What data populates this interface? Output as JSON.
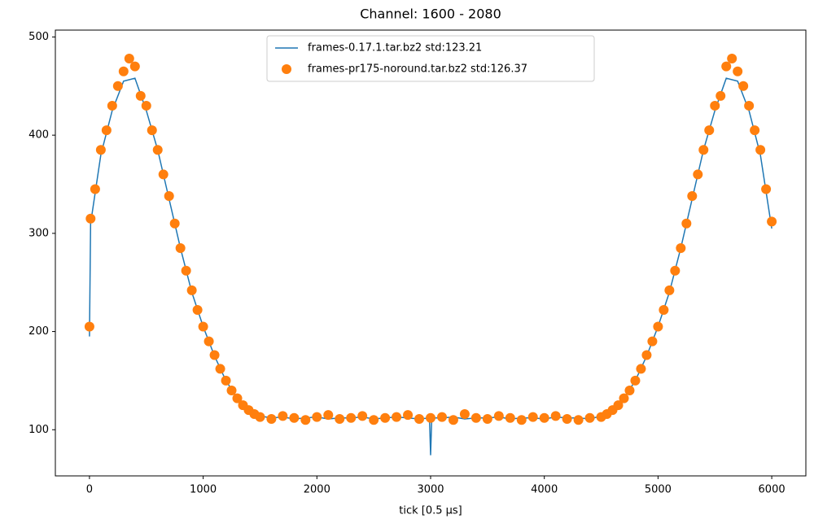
{
  "chart_data": {
    "type": "line",
    "title": "Channel: 1600 - 2080",
    "xlabel": "tick [0.5 μs]",
    "xlim": [
      -300,
      6300
    ],
    "xticks": [
      0,
      1000,
      2000,
      3000,
      4000,
      5000,
      6000
    ],
    "ylim": [
      53,
      507
    ],
    "yticks": [
      100,
      200,
      300,
      400,
      500
    ],
    "legend": "upper center",
    "series": [
      {
        "name": "frames-0.17.1.tar.bz2 std:123.21",
        "color": "#1f77b4",
        "style": "line",
        "x": [
          0,
          10,
          100,
          200,
          300,
          400,
          500,
          600,
          700,
          800,
          900,
          1000,
          1100,
          1200,
          1300,
          1400,
          1500,
          1600,
          1700,
          1800,
          1900,
          2000,
          2100,
          2200,
          2300,
          2400,
          2500,
          2600,
          2700,
          2800,
          2900,
          2990,
          3000,
          3010,
          3100,
          3200,
          3300,
          3400,
          3500,
          3600,
          3700,
          3800,
          3900,
          4000,
          4100,
          4200,
          4300,
          4400,
          4500,
          4600,
          4700,
          4800,
          4900,
          5000,
          5100,
          5200,
          5300,
          5400,
          5500,
          5600,
          5700,
          5800,
          5900,
          6000
        ],
        "values": [
          195,
          310,
          380,
          425,
          455,
          458,
          425,
          385,
          335,
          285,
          240,
          205,
          175,
          150,
          132,
          120,
          114,
          112,
          113,
          111,
          112,
          113,
          111,
          112,
          112,
          113,
          111,
          112,
          113,
          112,
          111,
          112,
          74,
          112,
          112,
          113,
          111,
          112,
          112,
          113,
          111,
          112,
          112,
          111,
          113,
          112,
          112,
          111,
          114,
          120,
          132,
          150,
          175,
          205,
          240,
          285,
          335,
          385,
          425,
          458,
          455,
          425,
          380,
          305
        ]
      },
      {
        "name": "frames-pr175-noround.tar.bz2 std:126.37",
        "color": "#ff7f0e",
        "style": "scatter",
        "x": [
          0,
          10,
          50,
          100,
          150,
          200,
          250,
          300,
          350,
          400,
          450,
          500,
          550,
          600,
          650,
          700,
          750,
          800,
          850,
          900,
          950,
          1000,
          1050,
          1100,
          1150,
          1200,
          1250,
          1300,
          1350,
          1400,
          1450,
          1500,
          1600,
          1700,
          1800,
          1900,
          2000,
          2100,
          2200,
          2300,
          2400,
          2500,
          2600,
          2700,
          2800,
          2900,
          3000,
          3100,
          3200,
          3300,
          3400,
          3500,
          3600,
          3700,
          3800,
          3900,
          4000,
          4100,
          4200,
          4300,
          4400,
          4500,
          4550,
          4600,
          4650,
          4700,
          4750,
          4800,
          4850,
          4900,
          4950,
          5000,
          5050,
          5100,
          5150,
          5200,
          5250,
          5300,
          5350,
          5400,
          5450,
          5500,
          5550,
          5600,
          5650,
          5700,
          5750,
          5800,
          5850,
          5900,
          5950,
          6000
        ],
        "values": [
          205,
          315,
          345,
          385,
          405,
          430,
          450,
          465,
          478,
          470,
          440,
          430,
          405,
          385,
          360,
          338,
          310,
          285,
          262,
          242,
          222,
          205,
          190,
          176,
          162,
          150,
          140,
          132,
          125,
          120,
          116,
          113,
          111,
          114,
          112,
          110,
          113,
          115,
          111,
          112,
          114,
          110,
          112,
          113,
          115,
          111,
          112,
          113,
          110,
          116,
          112,
          111,
          114,
          112,
          110,
          113,
          112,
          114,
          111,
          110,
          112,
          113,
          116,
          120,
          125,
          132,
          140,
          150,
          162,
          176,
          190,
          205,
          222,
          242,
          262,
          285,
          310,
          338,
          360,
          385,
          405,
          430,
          440,
          470,
          478,
          465,
          450,
          430,
          405,
          385,
          345,
          312
        ]
      }
    ]
  }
}
